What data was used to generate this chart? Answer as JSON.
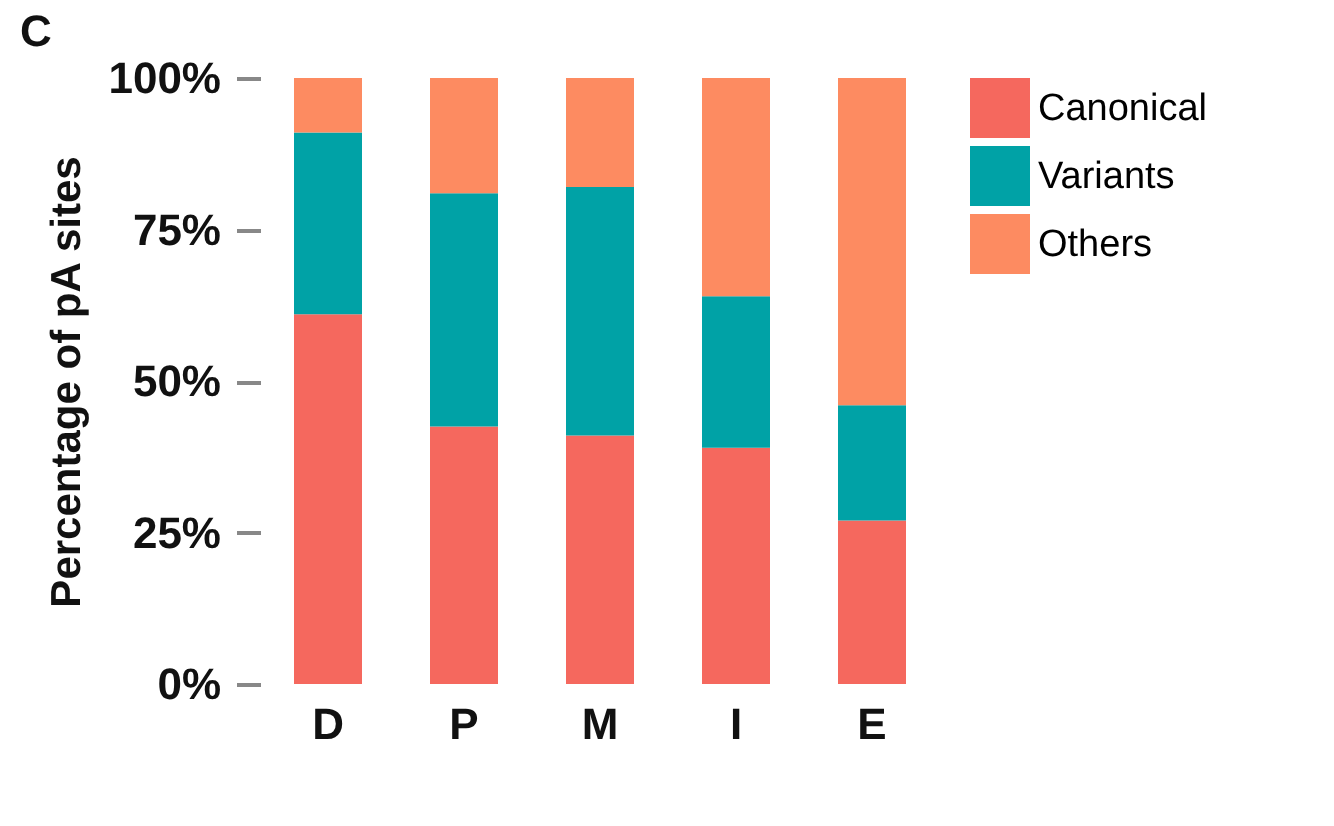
{
  "chart_data": {
    "type": "bar",
    "title": "C",
    "ylabel": "Percentage of pA sites",
    "categories": [
      "D",
      "P",
      "M",
      "I",
      "E"
    ],
    "stacked": true,
    "legend": "right",
    "series": [
      {
        "name": "Canonical",
        "color": "#f5685e",
        "values": [
          61,
          42.5,
          41,
          39,
          27
        ]
      },
      {
        "name": "Variants",
        "color": "#00a2a6",
        "values": [
          30,
          38.5,
          41,
          25,
          19
        ]
      },
      {
        "name": "Others",
        "color": "#fd8b61",
        "values": [
          9,
          19,
          18,
          36,
          54
        ]
      }
    ],
    "ylim": [
      0,
      100
    ],
    "yticks": [
      {
        "value": 0,
        "label": "0%"
      },
      {
        "value": 25,
        "label": "25%"
      },
      {
        "value": 50,
        "label": "50%"
      },
      {
        "value": 75,
        "label": "75%"
      },
      {
        "value": 100,
        "label": "100%"
      }
    ]
  }
}
